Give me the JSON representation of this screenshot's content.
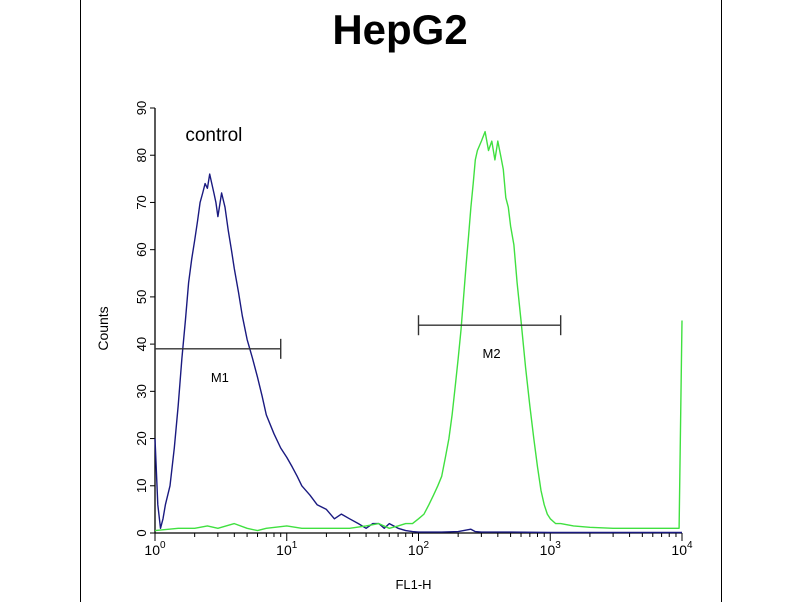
{
  "chart_data": {
    "type": "histogram",
    "title": "HepG2",
    "xlabel": "FL1-H",
    "ylabel": "Counts",
    "x_scale": "log",
    "xlim": [
      1,
      10000
    ],
    "ylim": [
      0,
      90
    ],
    "x_ticks": [
      {
        "base": "10",
        "exp": "0",
        "value": 1
      },
      {
        "base": "10",
        "exp": "1",
        "value": 10
      },
      {
        "base": "10",
        "exp": "2",
        "value": 100
      },
      {
        "base": "10",
        "exp": "3",
        "value": 1000
      },
      {
        "base": "10",
        "exp": "4",
        "value": 10000
      }
    ],
    "y_ticks": [
      0,
      10,
      20,
      30,
      40,
      50,
      60,
      70,
      80,
      90
    ],
    "annotations": [
      {
        "text": "control",
        "x": 1.7,
        "y": 83
      }
    ],
    "markers": [
      {
        "label": "M1",
        "x_start": 1.0,
        "x_end": 9.0,
        "y": 39
      },
      {
        "label": "M2",
        "x_start": 100,
        "x_end": 1200,
        "y": 44
      }
    ],
    "series": [
      {
        "color": "#1a1a80",
        "points": [
          [
            1.0,
            20
          ],
          [
            1.05,
            6
          ],
          [
            1.1,
            1
          ],
          [
            1.15,
            3
          ],
          [
            1.2,
            6
          ],
          [
            1.3,
            10
          ],
          [
            1.4,
            18
          ],
          [
            1.5,
            27
          ],
          [
            1.6,
            37
          ],
          [
            1.7,
            45
          ],
          [
            1.8,
            53
          ],
          [
            1.9,
            58
          ],
          [
            2.0,
            62
          ],
          [
            2.1,
            66
          ],
          [
            2.2,
            70
          ],
          [
            2.3,
            72
          ],
          [
            2.4,
            74
          ],
          [
            2.5,
            73
          ],
          [
            2.6,
            76
          ],
          [
            2.7,
            74
          ],
          [
            2.8,
            72
          ],
          [
            2.9,
            70
          ],
          [
            3.0,
            67
          ],
          [
            3.2,
            72
          ],
          [
            3.4,
            69
          ],
          [
            3.6,
            64
          ],
          [
            3.8,
            60
          ],
          [
            4.0,
            56
          ],
          [
            4.3,
            51
          ],
          [
            4.6,
            46
          ],
          [
            5.0,
            41
          ],
          [
            5.5,
            37
          ],
          [
            6.0,
            33
          ],
          [
            6.5,
            29
          ],
          [
            7.0,
            25
          ],
          [
            8.0,
            21
          ],
          [
            9.0,
            18
          ],
          [
            10,
            16
          ],
          [
            11,
            14
          ],
          [
            12,
            12
          ],
          [
            13,
            10
          ],
          [
            15,
            8
          ],
          [
            17,
            6
          ],
          [
            20,
            5
          ],
          [
            23,
            3
          ],
          [
            26,
            4
          ],
          [
            30,
            3
          ],
          [
            35,
            2
          ],
          [
            40,
            1
          ],
          [
            45,
            2
          ],
          [
            50,
            2
          ],
          [
            55,
            1
          ],
          [
            60,
            2
          ],
          [
            70,
            1
          ],
          [
            80,
            0.5
          ],
          [
            90,
            0.3
          ],
          [
            100,
            0.2
          ],
          [
            150,
            0.2
          ],
          [
            200,
            0.3
          ],
          [
            250,
            0.8
          ],
          [
            270,
            0.3
          ],
          [
            300,
            0.2
          ],
          [
            500,
            0.2
          ],
          [
            1000,
            0.1
          ],
          [
            10000,
            0.1
          ]
        ]
      },
      {
        "color": "#40e040",
        "points": [
          [
            1.0,
            0.5
          ],
          [
            1.5,
            1
          ],
          [
            2,
            1
          ],
          [
            2.5,
            1.5
          ],
          [
            3,
            1
          ],
          [
            4,
            2
          ],
          [
            5,
            1
          ],
          [
            6,
            0.5
          ],
          [
            7,
            1
          ],
          [
            10,
            1.5
          ],
          [
            13,
            1
          ],
          [
            20,
            1
          ],
          [
            30,
            1
          ],
          [
            40,
            1.5
          ],
          [
            50,
            2
          ],
          [
            60,
            1
          ],
          [
            70,
            1.5
          ],
          [
            80,
            2
          ],
          [
            90,
            2
          ],
          [
            100,
            3
          ],
          [
            110,
            4
          ],
          [
            120,
            6
          ],
          [
            130,
            8
          ],
          [
            140,
            10
          ],
          [
            150,
            12
          ],
          [
            160,
            16
          ],
          [
            170,
            20
          ],
          [
            180,
            25
          ],
          [
            190,
            31
          ],
          [
            200,
            37
          ],
          [
            210,
            43
          ],
          [
            220,
            50
          ],
          [
            230,
            57
          ],
          [
            240,
            63
          ],
          [
            250,
            69
          ],
          [
            260,
            74
          ],
          [
            270,
            79
          ],
          [
            280,
            81
          ],
          [
            300,
            83
          ],
          [
            320,
            85
          ],
          [
            340,
            81
          ],
          [
            360,
            83
          ],
          [
            380,
            79
          ],
          [
            400,
            83
          ],
          [
            420,
            80
          ],
          [
            440,
            77
          ],
          [
            460,
            71
          ],
          [
            480,
            69
          ],
          [
            500,
            65
          ],
          [
            530,
            61
          ],
          [
            560,
            53
          ],
          [
            600,
            45
          ],
          [
            650,
            35
          ],
          [
            700,
            27
          ],
          [
            750,
            20
          ],
          [
            800,
            14
          ],
          [
            850,
            9
          ],
          [
            900,
            6
          ],
          [
            950,
            4
          ],
          [
            1000,
            3
          ],
          [
            1100,
            2
          ],
          [
            1200,
            2
          ],
          [
            1500,
            1.5
          ],
          [
            2000,
            1.2
          ],
          [
            3000,
            1
          ],
          [
            4000,
            1
          ],
          [
            5000,
            1
          ],
          [
            6000,
            1
          ],
          [
            8000,
            1
          ],
          [
            9500,
            1
          ],
          [
            10000,
            45
          ]
        ]
      }
    ]
  }
}
